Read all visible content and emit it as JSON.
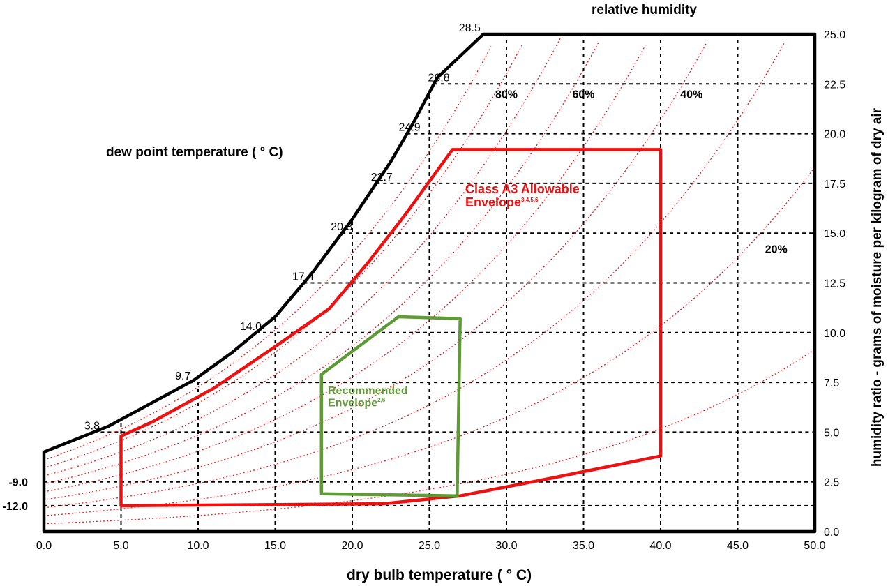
{
  "chart_data": {
    "type": "psychrometric",
    "title": "",
    "xlabel": "dry bulb temperature ( ° C)",
    "ylabel": "humidity ratio - grams of moisture per kilogram of dry air",
    "top_label": "relative humidity",
    "dew_axis_label": "dew point temperature ( ° C)",
    "xlim": [
      0,
      50
    ],
    "ylim": [
      0,
      25
    ],
    "x_ticks": [
      "0.0",
      "5.0",
      "10.0",
      "15.0",
      "20.0",
      "25.0",
      "30.0",
      "35.0",
      "40.0",
      "45.0",
      "50.0"
    ],
    "y_ticks": [
      "0.0",
      "2.5",
      "5.0",
      "7.5",
      "10.0",
      "12.5",
      "15.0",
      "17.5",
      "20.0",
      "22.5",
      "25.0"
    ],
    "grid": true,
    "saturation_curve": {
      "x": [
        0.0,
        4.2,
        9.7,
        12.2,
        15.0,
        17.4,
        20.0,
        22.5,
        24.0,
        25.5,
        28.5,
        50.0
      ],
      "y": [
        4.0,
        5.3,
        7.6,
        9.0,
        10.8,
        13.0,
        15.7,
        18.6,
        20.6,
        22.8,
        25.0,
        25.0
      ]
    },
    "dew_point_labels": [
      {
        "label": "28.5",
        "x": 28.5,
        "y": 25.0
      },
      {
        "label": "26.8",
        "x": 26.5,
        "y": 22.5
      },
      {
        "label": "24.9",
        "x": 24.6,
        "y": 20.0
      },
      {
        "label": "22.7",
        "x": 22.8,
        "y": 17.5
      },
      {
        "label": "20.3",
        "x": 20.2,
        "y": 15.0
      },
      {
        "label": "17.4",
        "x": 17.7,
        "y": 12.5
      },
      {
        "label": "14.0",
        "x": 14.3,
        "y": 10.0
      },
      {
        "label": "9.7",
        "x": 9.7,
        "y": 7.5
      },
      {
        "label": "3.8",
        "x": 3.8,
        "y": 5.0
      },
      {
        "label": "-9.0",
        "x": 0.0,
        "y": 2.5
      },
      {
        "label": "-12.0",
        "x": 0.0,
        "y": 1.3
      }
    ],
    "dew_point_bold_labels": [
      "-9.0",
      "-12.0"
    ],
    "rh_labels": [
      {
        "label": "80%",
        "x": 30.0,
        "y": 21.8
      },
      {
        "label": "60%",
        "x": 35.0,
        "y": 21.8
      },
      {
        "label": "40%",
        "x": 42.0,
        "y": 21.8
      },
      {
        "label": "20%",
        "x": 47.5,
        "y": 14.0
      }
    ],
    "rh_curves_percent": [
      10,
      20,
      30,
      40,
      50,
      60,
      70,
      80,
      90
    ],
    "series": [
      {
        "name": "Class A3 Allowable Envelope",
        "superscript": "3,4,5,6",
        "color": "#ee1111",
        "x": [
          5.0,
          5.0,
          7.0,
          11.0,
          15.0,
          18.5,
          21.0,
          23.5,
          26.5,
          40.0,
          40.0,
          33.0,
          27.0,
          22.0,
          5.0
        ],
        "y": [
          1.3,
          4.8,
          5.5,
          7.2,
          9.3,
          11.2,
          13.5,
          16.0,
          19.2,
          19.2,
          3.8,
          2.7,
          1.8,
          1.4,
          1.3
        ]
      },
      {
        "name": "Recommended Envelope",
        "superscript": "2,6",
        "color": "#5e9a35",
        "x": [
          18.0,
          18.0,
          23.0,
          27.0,
          26.8,
          18.0
        ],
        "y": [
          1.9,
          7.9,
          10.8,
          10.7,
          1.8,
          1.9
        ]
      }
    ]
  }
}
